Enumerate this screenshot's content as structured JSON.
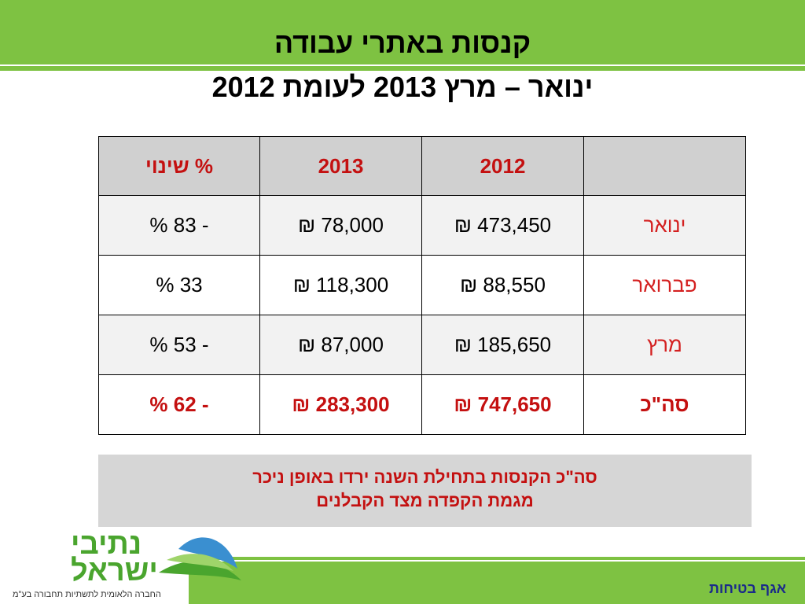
{
  "header": {
    "title_line1": "קנסות באתרי עבודה",
    "title_line2": "ינואר – מרץ 2013 לעומת 2012"
  },
  "table": {
    "columns": [
      "",
      "2012",
      "2013",
      "% שינוי"
    ],
    "rows": [
      {
        "month": "ינואר",
        "v2012": "473,450 ₪",
        "v2013": "78,000   ₪",
        "change": "- 83 %"
      },
      {
        "month": "פברואר",
        "v2012": "88,550   ₪",
        "v2013": "118,300 ₪",
        "change": "33 %"
      },
      {
        "month": "מרץ",
        "v2012": "185,650 ₪",
        "v2013": "87,000  ₪",
        "change": "- 53 %"
      }
    ],
    "total": {
      "month": "סה\"כ",
      "v2012": "747,650 ₪",
      "v2013": "283,300 ₪",
      "change": "- 62 %"
    }
  },
  "note": {
    "line1": "סה\"כ הקנסות בתחילת השנה ירדו באופן ניכר",
    "line2": "מגמת הקפדה מצד הקבלנים"
  },
  "footer": {
    "department": "אגף בטיחות"
  },
  "logo": {
    "name_line1": "נתיבי",
    "name_line2": "ישראל",
    "tagline": "החברה הלאומית לתשתיות תחבורה בע\"מ"
  },
  "colors": {
    "brand_green": "#7ec242",
    "accent_red": "#c41010",
    "footer_blue": "#1a2a8a"
  }
}
